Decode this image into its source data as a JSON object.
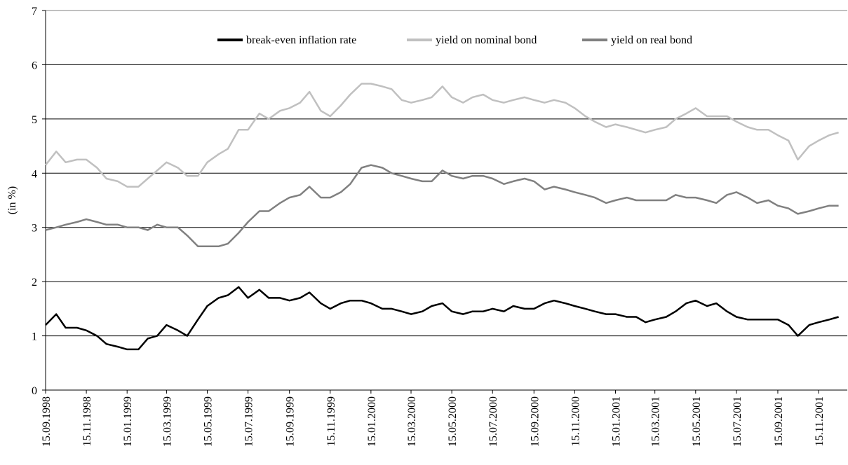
{
  "chart_data": {
    "type": "line",
    "y_label": "(in %)",
    "x": [
      "15.09.1998",
      "01.10.1998",
      "15.10.1998",
      "01.11.1998",
      "15.11.1998",
      "01.12.1998",
      "15.12.1998",
      "01.01.1999",
      "15.01.1999",
      "01.02.1999",
      "15.02.1999",
      "01.03.1999",
      "15.03.1999",
      "01.04.1999",
      "15.04.1999",
      "01.05.1999",
      "15.05.1999",
      "01.06.1999",
      "15.06.1999",
      "01.07.1999",
      "15.07.1999",
      "01.08.1999",
      "15.08.1999",
      "01.09.1999",
      "15.09.1999",
      "01.10.1999",
      "15.10.1999",
      "01.11.1999",
      "15.11.1999",
      "01.12.1999",
      "15.12.1999",
      "01.01.2000",
      "15.01.2000",
      "01.02.2000",
      "15.02.2000",
      "01.03.2000",
      "15.03.2000",
      "01.04.2000",
      "15.04.2000",
      "01.05.2000",
      "15.05.2000",
      "01.06.2000",
      "15.06.2000",
      "01.07.2000",
      "15.07.2000",
      "01.08.2000",
      "15.08.2000",
      "01.09.2000",
      "15.09.2000",
      "01.10.2000",
      "15.10.2000",
      "01.11.2000",
      "15.11.2000",
      "01.12.2000",
      "15.12.2000",
      "01.01.2001",
      "15.01.2001",
      "01.02.2001",
      "15.02.2001",
      "01.03.2001",
      "15.03.2001",
      "01.04.2001",
      "15.04.2001",
      "01.05.2001",
      "15.05.2001",
      "01.06.2001",
      "15.06.2001",
      "01.07.2001",
      "15.07.2001",
      "01.08.2001",
      "15.08.2001",
      "01.09.2001",
      "15.09.2001",
      "01.10.2001",
      "15.10.2001",
      "01.11.2001",
      "15.11.2001",
      "01.12.2001",
      "15.12.2001"
    ],
    "series": [
      {
        "name": "break-even inflation rate",
        "color": "#000000",
        "values": [
          1.2,
          1.4,
          1.15,
          1.15,
          1.1,
          1.0,
          0.85,
          0.8,
          0.75,
          0.75,
          0.95,
          1.0,
          1.2,
          1.1,
          1.0,
          1.3,
          1.55,
          1.7,
          1.75,
          1.9,
          1.7,
          1.85,
          1.7,
          1.7,
          1.65,
          1.7,
          1.8,
          1.6,
          1.5,
          1.6,
          1.65,
          1.65,
          1.6,
          1.5,
          1.5,
          1.45,
          1.4,
          1.45,
          1.55,
          1.6,
          1.45,
          1.4,
          1.45,
          1.45,
          1.5,
          1.45,
          1.55,
          1.5,
          1.5,
          1.6,
          1.65,
          1.6,
          1.55,
          1.5,
          1.45,
          1.4,
          1.4,
          1.35,
          1.35,
          1.25,
          1.3,
          1.35,
          1.45,
          1.6,
          1.65,
          1.55,
          1.6,
          1.45,
          1.35,
          1.3,
          1.3,
          1.3,
          1.3,
          1.2,
          1.0,
          1.2,
          1.25,
          1.3,
          1.35
        ]
      },
      {
        "name": "yield on nominal bond",
        "color": "#c0c0c0",
        "values": [
          4.15,
          4.4,
          4.2,
          4.25,
          4.25,
          4.1,
          3.9,
          3.85,
          3.75,
          3.75,
          3.9,
          4.05,
          4.2,
          4.1,
          3.95,
          3.95,
          4.2,
          4.35,
          4.45,
          4.8,
          4.8,
          5.1,
          5.0,
          5.15,
          5.2,
          5.3,
          5.5,
          5.15,
          5.05,
          5.25,
          5.45,
          5.65,
          5.65,
          5.6,
          5.55,
          5.35,
          5.3,
          5.35,
          5.4,
          5.6,
          5.4,
          5.3,
          5.4,
          5.45,
          5.35,
          5.3,
          5.35,
          5.4,
          5.35,
          5.3,
          5.35,
          5.3,
          5.2,
          5.05,
          4.95,
          4.85,
          4.9,
          4.85,
          4.8,
          4.75,
          4.8,
          4.85,
          5.0,
          5.1,
          5.2,
          5.05,
          5.05,
          5.05,
          4.95,
          4.85,
          4.8,
          4.8,
          4.7,
          4.6,
          4.25,
          4.5,
          4.6,
          4.7,
          4.75
        ]
      },
      {
        "name": "yield on real bond",
        "color": "#808080",
        "values": [
          2.95,
          3.0,
          3.05,
          3.1,
          3.15,
          3.1,
          3.05,
          3.05,
          3.0,
          3.0,
          2.95,
          3.05,
          3.0,
          3.0,
          2.85,
          2.65,
          2.65,
          2.65,
          2.7,
          2.9,
          3.1,
          3.3,
          3.3,
          3.45,
          3.55,
          3.6,
          3.75,
          3.55,
          3.55,
          3.65,
          3.8,
          4.1,
          4.15,
          4.1,
          4.0,
          3.95,
          3.9,
          3.85,
          3.85,
          4.05,
          3.95,
          3.9,
          3.95,
          3.95,
          3.9,
          3.8,
          3.85,
          3.9,
          3.85,
          3.7,
          3.75,
          3.7,
          3.65,
          3.6,
          3.55,
          3.45,
          3.5,
          3.55,
          3.5,
          3.5,
          3.5,
          3.5,
          3.6,
          3.55,
          3.55,
          3.5,
          3.45,
          3.6,
          3.65,
          3.55,
          3.45,
          3.5,
          3.4,
          3.35,
          3.25,
          3.3,
          3.35,
          3.4,
          3.4
        ]
      }
    ],
    "xlim": [
      "15.09.1998",
      "28.12.2001"
    ],
    "xticks": [
      "15.09.1998",
      "15.11.1998",
      "15.01.1999",
      "15.03.1999",
      "15.05.1999",
      "15.07.1999",
      "15.09.1999",
      "15.11.1999",
      "15.01.2000",
      "15.03.2000",
      "15.05.2000",
      "15.07.2000",
      "15.09.2000",
      "15.11.2000",
      "15.01.2001",
      "15.03.2001",
      "15.05.2001",
      "15.07.2001",
      "15.09.2001",
      "15.11.2001"
    ],
    "ylim": [
      0,
      7
    ],
    "yticks": [
      0,
      1,
      2,
      3,
      4,
      5,
      6,
      7
    ],
    "grid": true
  }
}
